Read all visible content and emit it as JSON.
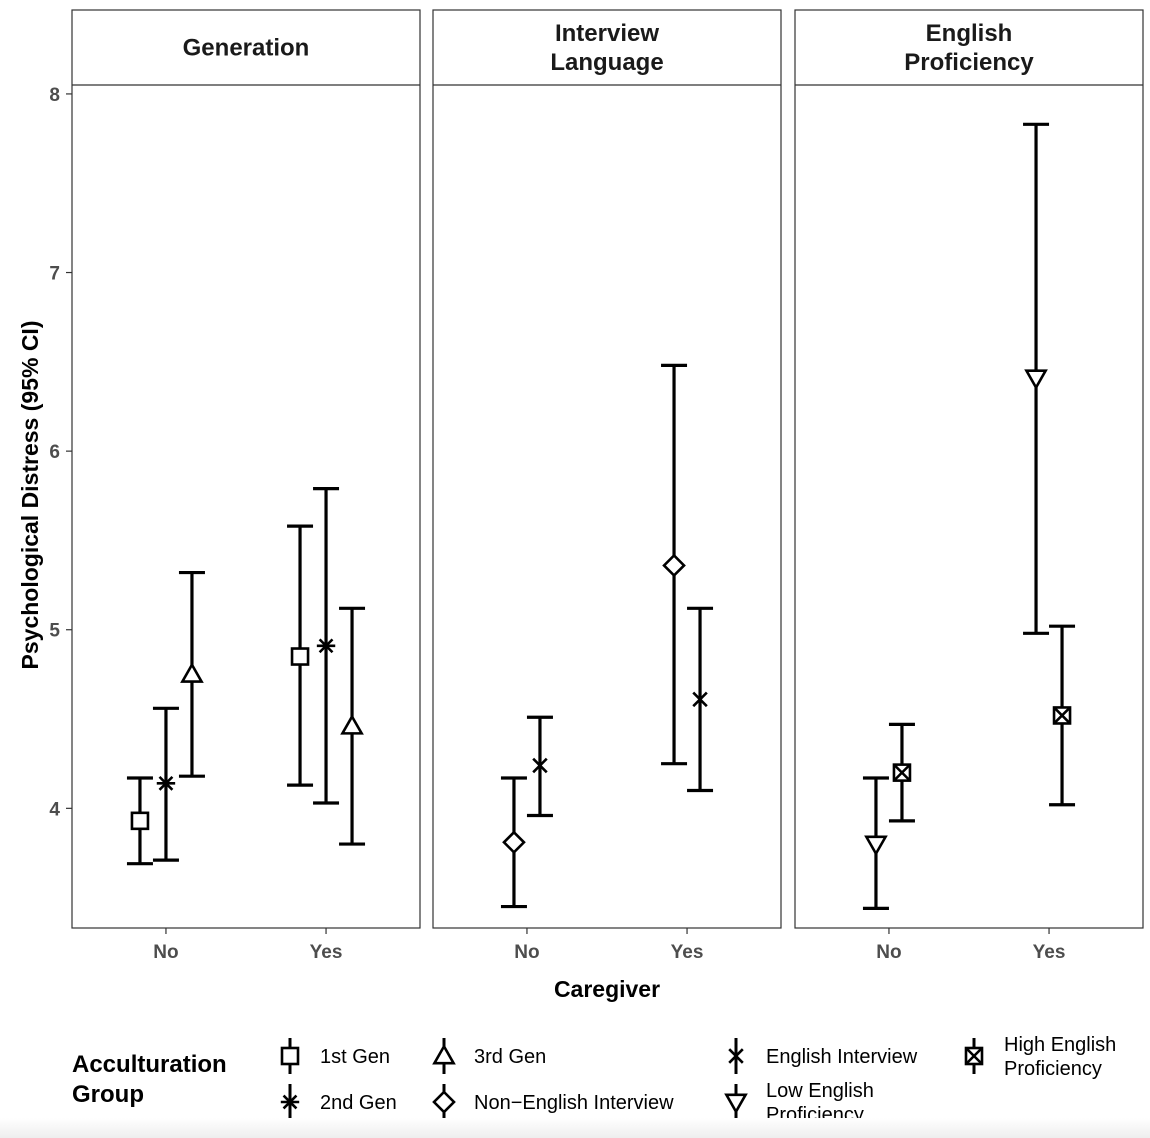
{
  "chart_data": {
    "type": "errorbar",
    "xlabel": "Caregiver",
    "ylabel": "Psychological Distress (95% CI)",
    "ylim": [
      3.33,
      8.05
    ],
    "yticks": [
      4,
      5,
      6,
      7,
      8
    ],
    "categories": [
      "No",
      "Yes"
    ],
    "legend": {
      "title_lines": [
        "Acculturation",
        "Group"
      ],
      "position": "bottom",
      "entries": [
        {
          "key": "gen1",
          "label_lines": [
            "1st Gen"
          ],
          "shape": "square"
        },
        {
          "key": "gen2",
          "label_lines": [
            "2nd Gen"
          ],
          "shape": "asterisk"
        },
        {
          "key": "gen3",
          "label_lines": [
            "3rd Gen"
          ],
          "shape": "triangle"
        },
        {
          "key": "nonenglish",
          "label_lines": [
            "Non−English Interview"
          ],
          "shape": "diamond"
        },
        {
          "key": "english",
          "label_lines": [
            "English Interview"
          ],
          "shape": "x"
        },
        {
          "key": "lowprof",
          "label_lines": [
            "Low English",
            "Proficiency"
          ],
          "shape": "triangle-down"
        },
        {
          "key": "highprof",
          "label_lines": [
            "High English",
            "Proficiency"
          ],
          "shape": "square-x"
        }
      ]
    },
    "panels": [
      {
        "title_lines": [
          "Generation"
        ],
        "series": [
          {
            "key": "gen1",
            "points": [
              {
                "x": "No",
                "y": 3.93,
                "lo": 3.69,
                "hi": 4.17
              },
              {
                "x": "Yes",
                "y": 4.85,
                "lo": 4.13,
                "hi": 5.58
              }
            ]
          },
          {
            "key": "gen2",
            "points": [
              {
                "x": "No",
                "y": 4.14,
                "lo": 3.71,
                "hi": 4.56
              },
              {
                "x": "Yes",
                "y": 4.91,
                "lo": 4.03,
                "hi": 5.79
              }
            ]
          },
          {
            "key": "gen3",
            "points": [
              {
                "x": "No",
                "y": 4.75,
                "lo": 4.18,
                "hi": 5.32
              },
              {
                "x": "Yes",
                "y": 4.46,
                "lo": 3.8,
                "hi": 5.12
              }
            ]
          }
        ]
      },
      {
        "title_lines": [
          "Interview",
          "Language"
        ],
        "series": [
          {
            "key": "nonenglish",
            "points": [
              {
                "x": "No",
                "y": 3.81,
                "lo": 3.45,
                "hi": 4.17
              },
              {
                "x": "Yes",
                "y": 5.36,
                "lo": 4.25,
                "hi": 6.48
              }
            ]
          },
          {
            "key": "english",
            "points": [
              {
                "x": "No",
                "y": 4.24,
                "lo": 3.96,
                "hi": 4.51
              },
              {
                "x": "Yes",
                "y": 4.61,
                "lo": 4.1,
                "hi": 5.12
              }
            ]
          }
        ]
      },
      {
        "title_lines": [
          "English",
          "Proficiency"
        ],
        "series": [
          {
            "key": "lowprof",
            "points": [
              {
                "x": "No",
                "y": 3.8,
                "lo": 3.44,
                "hi": 4.17
              },
              {
                "x": "Yes",
                "y": 6.41,
                "lo": 4.98,
                "hi": 7.83
              }
            ]
          },
          {
            "key": "highprof",
            "points": [
              {
                "x": "No",
                "y": 4.2,
                "lo": 3.93,
                "hi": 4.47
              },
              {
                "x": "Yes",
                "y": 4.52,
                "lo": 4.02,
                "hi": 5.02
              }
            ]
          }
        ]
      }
    ]
  }
}
